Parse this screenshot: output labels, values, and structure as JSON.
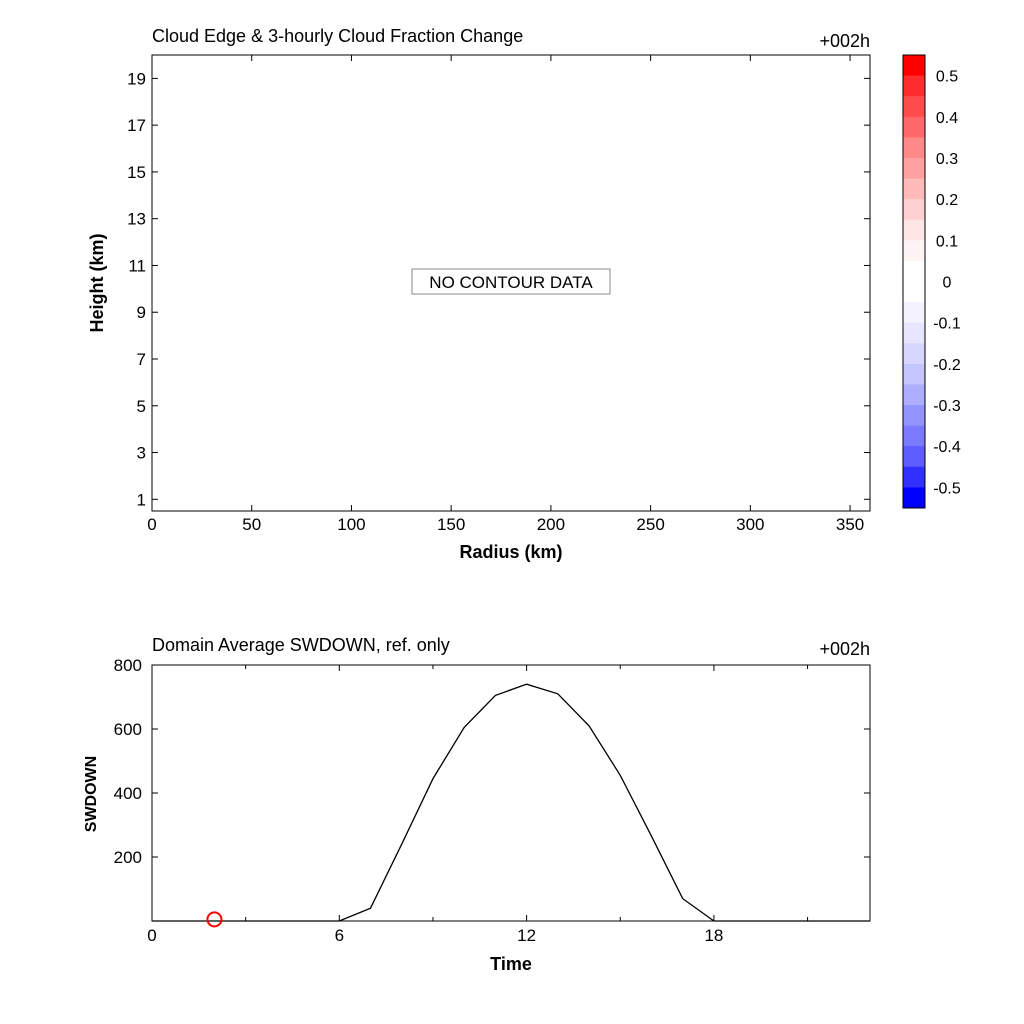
{
  "chart_data": [
    {
      "type": "heatmap",
      "title": "Cloud Edge & 3-hourly Cloud Fraction Change",
      "time_label": "+002h",
      "xlabel": "Radius (km)",
      "ylabel": "Height (km)",
      "xlim": [
        0,
        360
      ],
      "ylim": [
        0.5,
        20
      ],
      "xticks": [
        0,
        50,
        100,
        150,
        200,
        250,
        300,
        350
      ],
      "yticks": [
        1,
        3,
        5,
        7,
        9,
        11,
        13,
        15,
        17,
        19
      ],
      "annotation": "NO CONTOUR DATA",
      "colorbar": {
        "range": [
          -0.55,
          0.55
        ],
        "ticks": [
          "0.5",
          "0.4",
          "0.3",
          "0.2",
          "0.1",
          "0",
          "-0.1",
          "-0.2",
          "-0.3",
          "-0.4",
          "-0.5"
        ],
        "tick_values": [
          0.5,
          0.4,
          0.3,
          0.2,
          0.1,
          0,
          -0.1,
          -0.2,
          -0.3,
          -0.4,
          -0.5
        ],
        "colors": [
          "#ff0000",
          "#ff2d2d",
          "#ff4d4d",
          "#ff6868",
          "#ff8888",
          "#ffa0a0",
          "#ffbaba",
          "#ffd0d0",
          "#ffe6e6",
          "#fff4f4",
          "#ffffff",
          "#ffffff",
          "#f3f3ff",
          "#e6e6ff",
          "#d6d6ff",
          "#c4c4ff",
          "#aeaeff",
          "#9494ff",
          "#7a7aff",
          "#5c5cff",
          "#3030ff",
          "#0000ff"
        ]
      }
    },
    {
      "type": "line",
      "title": "Domain Average SWDOWN, ref. only",
      "time_label": "+002h",
      "xlabel": "Time",
      "ylabel": "SWDOWN",
      "xlim": [
        0,
        23
      ],
      "ylim": [
        0,
        800
      ],
      "xticks": [
        0,
        6,
        12,
        18
      ],
      "yticks": [
        200,
        400,
        600,
        800
      ],
      "series": [
        {
          "x": [
            0,
            1,
            2,
            3,
            4,
            5,
            6,
            7,
            8,
            9,
            10,
            11,
            12,
            13,
            14,
            15,
            16,
            17,
            18,
            19,
            20,
            21,
            22,
            23
          ],
          "values": [
            0,
            0,
            0,
            0,
            0,
            0,
            0,
            40,
            240,
            445,
            605,
            705,
            740,
            710,
            610,
            455,
            265,
            70,
            0,
            0,
            0,
            0,
            0,
            0
          ],
          "color": "#000000"
        }
      ],
      "marker": {
        "x": 2,
        "y": 5,
        "color": "#ff0000"
      }
    }
  ]
}
